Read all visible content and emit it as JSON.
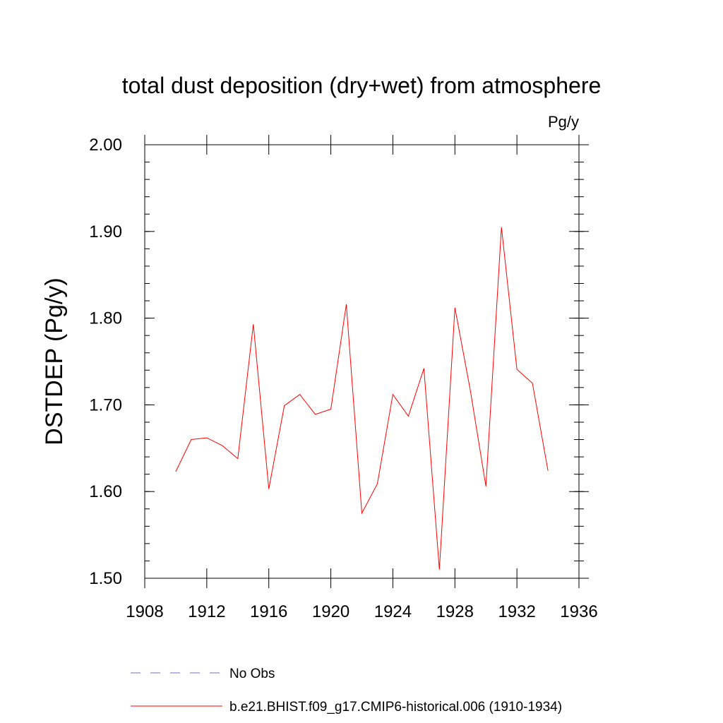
{
  "chart_data": {
    "type": "line",
    "title": "total dust deposition (dry+wet) from atmosphere",
    "units_label": "Pg/y",
    "ylabel": "DSTDEP  (Pg/y)",
    "xlabel": "",
    "xlim": [
      1908,
      1936
    ],
    "ylim": [
      1.5,
      2.0
    ],
    "x_ticks": [
      1908,
      1912,
      1916,
      1920,
      1924,
      1928,
      1932,
      1936
    ],
    "x_tick_labels": [
      "1908",
      "1912",
      "1916",
      "1920",
      "1924",
      "1928",
      "1932",
      "1936"
    ],
    "y_ticks": [
      1.5,
      1.6,
      1.7,
      1.8,
      1.9,
      2.0
    ],
    "y_tick_labels": [
      "1.50",
      "1.60",
      "1.70",
      "1.80",
      "1.90",
      "2.00"
    ],
    "grid": false,
    "legend_position": "bottom",
    "series": [
      {
        "name": "b.e21.BHIST.f09_g17.CMIP6-historical.006 (1910-1934)",
        "color": "#ff0000",
        "style": "solid",
        "x": [
          1910,
          1911,
          1912,
          1913,
          1914,
          1915,
          1916,
          1917,
          1918,
          1919,
          1920,
          1921,
          1922,
          1923,
          1924,
          1925,
          1926,
          1927,
          1928,
          1929,
          1930,
          1931,
          1932,
          1933,
          1934
        ],
        "values": [
          1.623,
          1.66,
          1.662,
          1.653,
          1.638,
          1.793,
          1.603,
          1.699,
          1.712,
          1.689,
          1.695,
          1.816,
          1.575,
          1.609,
          1.712,
          1.687,
          1.742,
          1.51,
          1.812,
          1.716,
          1.606,
          1.905,
          1.741,
          1.725,
          1.624
        ]
      }
    ],
    "legend": [
      {
        "label": "No Obs",
        "color": "#7b68c8",
        "style": "dashed"
      },
      {
        "label": "b.e21.BHIST.f09_g17.CMIP6-historical.006 (1910-1934)",
        "color": "#ff0000",
        "style": "solid"
      }
    ]
  }
}
